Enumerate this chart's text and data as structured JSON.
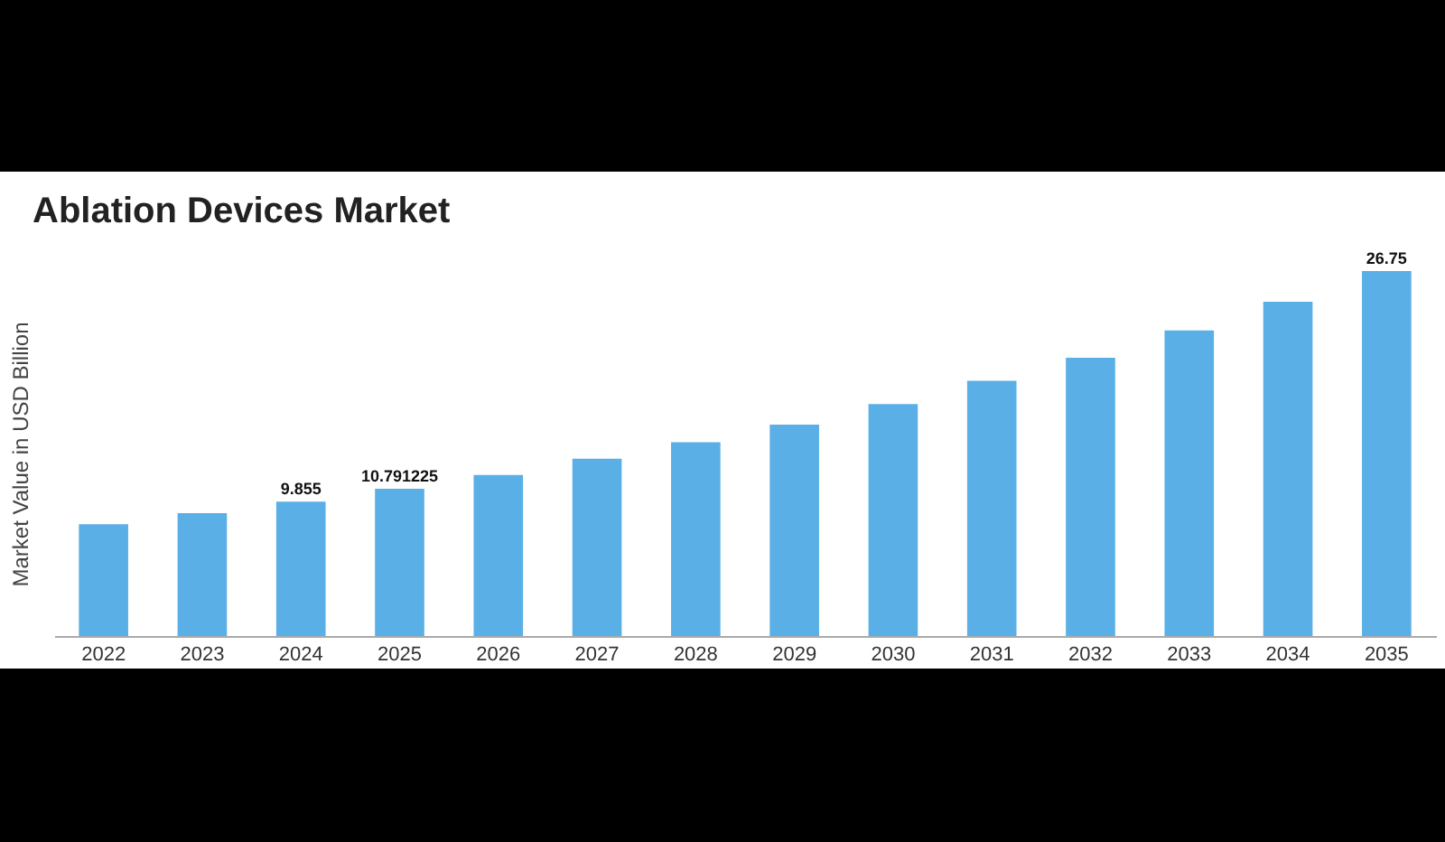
{
  "chart_data": {
    "type": "bar",
    "title": "Ablation Devices Market",
    "ylabel": "Market Value in USD Billion",
    "categories": [
      "2022",
      "2023",
      "2024",
      "2025",
      "2026",
      "2027",
      "2028",
      "2029",
      "2030",
      "2031",
      "2032",
      "2033",
      "2034",
      "2035"
    ],
    "values": [
      8.2,
      9.0,
      9.855,
      10.791225,
      11.8,
      13.0,
      14.2,
      15.5,
      17.0,
      18.7,
      20.4,
      22.4,
      24.5,
      26.75
    ],
    "value_labels": [
      null,
      null,
      "9.855",
      "10.791225",
      null,
      null,
      null,
      null,
      null,
      null,
      null,
      null,
      null,
      "26.75"
    ],
    "color": "#5ab0e6"
  }
}
